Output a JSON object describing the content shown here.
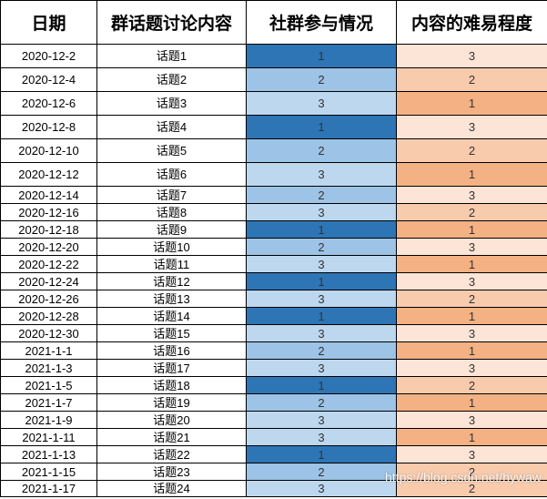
{
  "header": {
    "date": "日期",
    "topic": "群话题讨论内容",
    "activity": "社群参与情况",
    "difficulty": "内容的难易程度"
  },
  "rows": [
    {
      "date": "2020-12-2",
      "topic": "话题1",
      "activity": "1",
      "difficulty": "3"
    },
    {
      "date": "2020-12-4",
      "topic": "话题2",
      "activity": "2",
      "difficulty": "2"
    },
    {
      "date": "2020-12-6",
      "topic": "话题3",
      "activity": "3",
      "difficulty": "1"
    },
    {
      "date": "2020-12-8",
      "topic": "话题4",
      "activity": "1",
      "difficulty": "3"
    },
    {
      "date": "2020-12-10",
      "topic": "话题5",
      "activity": "2",
      "difficulty": "2"
    },
    {
      "date": "2020-12-12",
      "topic": "话题6",
      "activity": "3",
      "difficulty": "1"
    },
    {
      "date": "2020-12-14",
      "topic": "话题7",
      "activity": "2",
      "difficulty": "3"
    },
    {
      "date": "2020-12-16",
      "topic": "话题8",
      "activity": "3",
      "difficulty": "2"
    },
    {
      "date": "2020-12-18",
      "topic": "话题9",
      "activity": "1",
      "difficulty": "1"
    },
    {
      "date": "2020-12-20",
      "topic": "话题10",
      "activity": "2",
      "difficulty": "3"
    },
    {
      "date": "2020-12-22",
      "topic": "话题11",
      "activity": "3",
      "difficulty": "1"
    },
    {
      "date": "2020-12-24",
      "topic": "话题12",
      "activity": "1",
      "difficulty": "3"
    },
    {
      "date": "2020-12-26",
      "topic": "话题13",
      "activity": "3",
      "difficulty": "2"
    },
    {
      "date": "2020-12-28",
      "topic": "话题14",
      "activity": "1",
      "difficulty": "1"
    },
    {
      "date": "2020-12-30",
      "topic": "话题15",
      "activity": "3",
      "difficulty": "3"
    },
    {
      "date": "2021-1-1",
      "topic": "话题16",
      "activity": "2",
      "difficulty": "1"
    },
    {
      "date": "2021-1-3",
      "topic": "话题17",
      "activity": "3",
      "difficulty": "3"
    },
    {
      "date": "2021-1-5",
      "topic": "话题18",
      "activity": "1",
      "difficulty": "2"
    },
    {
      "date": "2021-1-7",
      "topic": "话题19",
      "activity": "2",
      "difficulty": "1"
    },
    {
      "date": "2021-1-9",
      "topic": "话题20",
      "activity": "3",
      "difficulty": "3"
    },
    {
      "date": "2021-1-11",
      "topic": "话题21",
      "activity": "3",
      "difficulty": "1"
    },
    {
      "date": "2021-1-13",
      "topic": "话题22",
      "activity": "1",
      "difficulty": "3"
    },
    {
      "date": "2021-1-15",
      "topic": "话题23",
      "activity": "2",
      "difficulty": "2"
    },
    {
      "date": "2021-1-17",
      "topic": "话题24",
      "activity": "3",
      "difficulty": "2"
    }
  ],
  "colors": {
    "activity": {
      "1": "#2e75b6",
      "2": "#9dc3e6",
      "3": "#bdd7ee"
    },
    "difficulty": {
      "1": "#f4b183",
      "2": "#f8cbad",
      "3": "#fce4d6"
    }
  },
  "watermark": "https://blog.csdn.net/hywaw"
}
